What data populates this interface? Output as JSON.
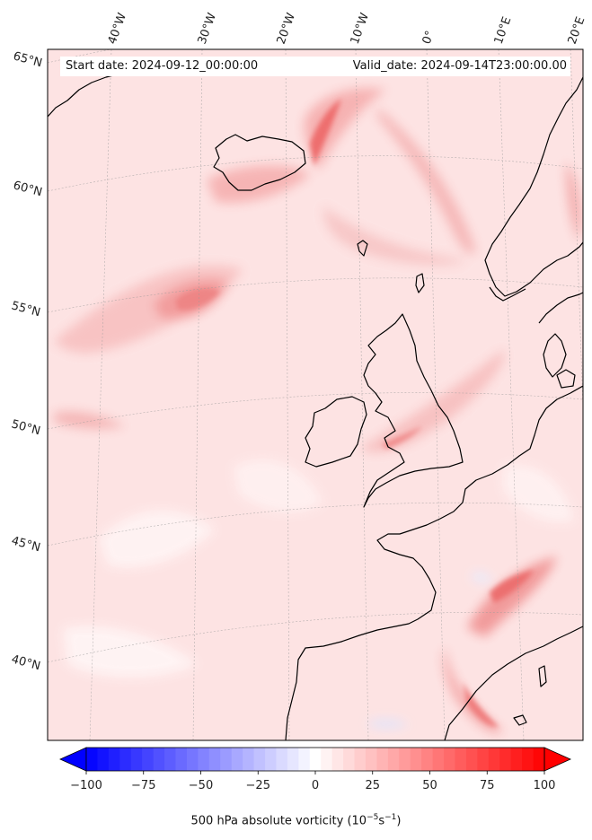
{
  "header": {
    "start_label": "Start date: 2024-09-12_00:00:00",
    "valid_label": "Valid_date: 2024-09-14T23:00:00.00"
  },
  "map": {
    "longitude_labels": [
      "40°W",
      "30°W",
      "20°W",
      "10°W",
      "0°",
      "10°E",
      "20°E"
    ],
    "latitude_labels": [
      "65°N",
      "60°N",
      "55°N",
      "50°N",
      "45°N",
      "40°N"
    ],
    "field": "500 hPa absolute vorticity",
    "colormap": "bwr",
    "background_color": "#fde3e3",
    "coastline_color": "#000000",
    "gridlines": true
  },
  "colorbar": {
    "title_main": "500 hPa absolute vorticity (10",
    "exp1": "−5",
    "mid": "s",
    "exp2": "−1",
    "tail": ")",
    "range": [
      -100,
      100
    ],
    "ticks": [
      "−100",
      "−75",
      "−50",
      "−25",
      "0",
      "25",
      "50",
      "75",
      "100"
    ],
    "tick_values": [
      -100,
      -75,
      -50,
      -25,
      0,
      25,
      50,
      75,
      100
    ],
    "levels": 41,
    "extend": "both",
    "min_color": "#0000ff",
    "mid_color": "#ffffff",
    "max_color": "#ff0000"
  }
}
